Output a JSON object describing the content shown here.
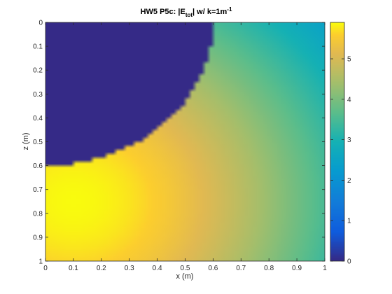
{
  "chart_data": {
    "type": "heatmap",
    "title": {
      "prefix": "HW5 P5c: |E",
      "sub": "tot",
      "middle": "| w/ k=1m",
      "sup": "-1"
    },
    "xlabel": "x (m)",
    "ylabel": "z (m)",
    "xlim": [
      0,
      1
    ],
    "ylim": [
      0,
      1
    ],
    "y_direction": "reversed",
    "x_ticks": [
      "0",
      "0.1",
      "0.2",
      "0.3",
      "0.4",
      "0.5",
      "0.6",
      "0.7",
      "0.8",
      "0.9",
      "1"
    ],
    "y_ticks": [
      "0",
      "0.1",
      "0.2",
      "0.3",
      "0.4",
      "0.5",
      "0.6",
      "0.7",
      "0.8",
      "0.9",
      "1"
    ],
    "colormap": "parula",
    "clim": [
      0,
      5.9
    ],
    "colorbar_ticks": [
      "0",
      "1",
      "2",
      "3",
      "4",
      "5"
    ],
    "field_model": {
      "description_of_values": "magnitude over grid",
      "peak_value": 5.9,
      "peak_location": [
        0.1,
        0.75
      ],
      "value_at_corner_x1_z0": 3.1,
      "value_at_corner_x1_z1": 2.5,
      "masked_region": "quarter-disc centred at (0, 0) with radius 0.6, value 0"
    },
    "grid": false,
    "colorbar_location": "right"
  }
}
